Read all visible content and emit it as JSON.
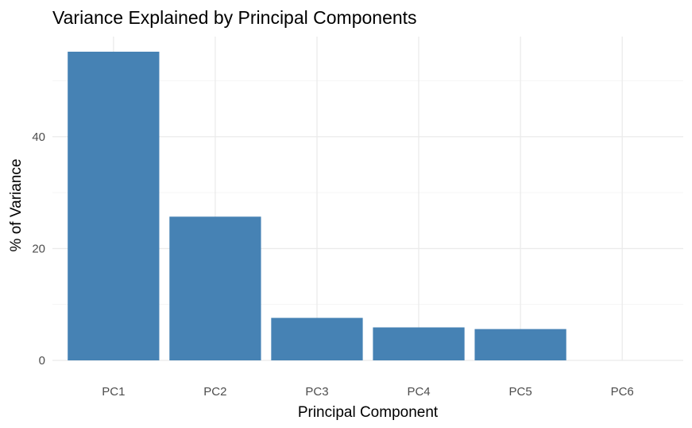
{
  "chart_data": {
    "type": "bar",
    "title": "Variance Explained by Principal Components",
    "xlabel": "Principal Component",
    "ylabel": "% of Variance",
    "categories": [
      "PC1",
      "PC2",
      "PC3",
      "PC4",
      "PC5",
      "PC6"
    ],
    "values": [
      55.2,
      25.7,
      7.6,
      5.9,
      5.6,
      0
    ],
    "ylim": [
      0,
      57.9
    ],
    "yticks": [
      0,
      20,
      40
    ],
    "yticks_minor": [
      10,
      30,
      50
    ],
    "grid": true,
    "legend": "none",
    "bar_color": "#4682b4"
  }
}
